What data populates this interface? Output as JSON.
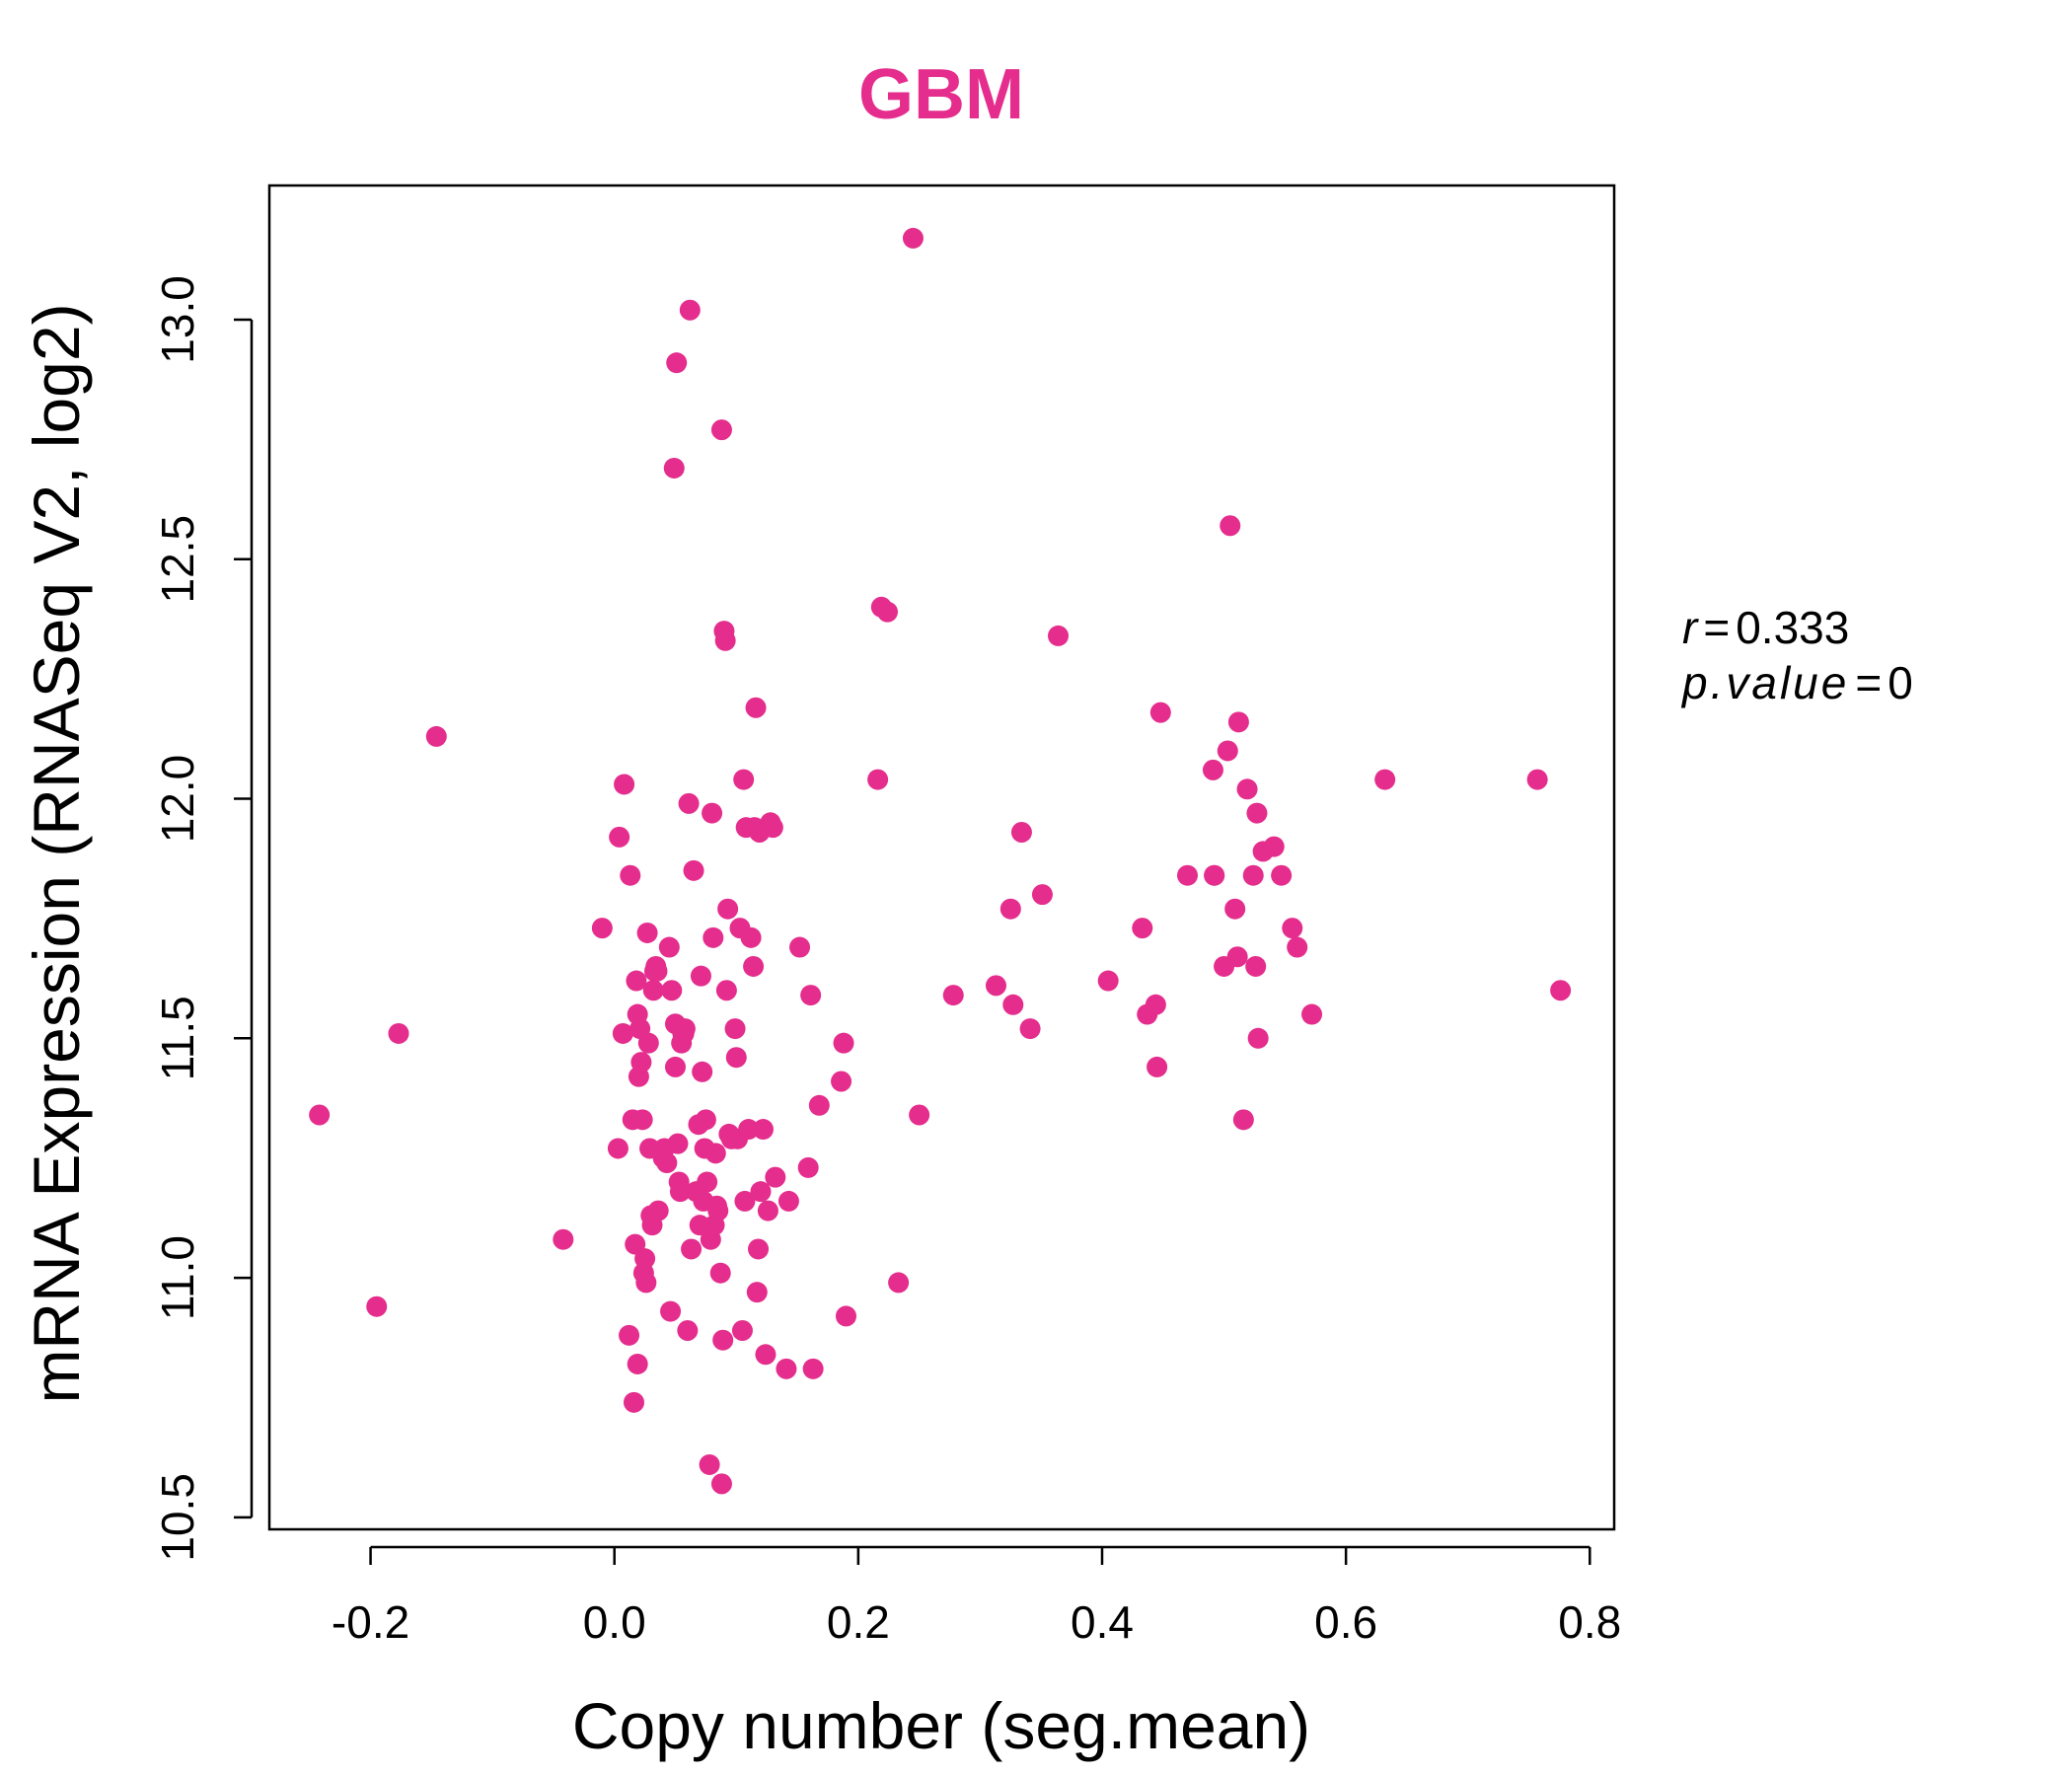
{
  "chart_data": {
    "type": "scatter",
    "title": "GBM",
    "xlabel": "Copy number (seg.mean)",
    "ylabel": "mRNA Expression (RNASeq V2, log2)",
    "xlim": [
      -0.283,
      0.82
    ],
    "ylim": [
      10.475,
      13.28
    ],
    "x_ticks": [
      -0.2,
      0.0,
      0.2,
      0.4,
      0.6,
      0.8
    ],
    "x_tick_labels": [
      "-0.2",
      "0.0",
      "0.2",
      "0.4",
      "0.6",
      "0.8"
    ],
    "y_ticks": [
      10.5,
      11.0,
      11.5,
      12.0,
      12.5,
      13.0
    ],
    "y_tick_labels": [
      "10.5",
      "11.0",
      "11.5",
      "12.0",
      "12.5",
      "13.0"
    ],
    "grid": false,
    "legend": "none",
    "point_color": "#E42D8C",
    "annotations": [
      {
        "symbol": "r",
        "eq": "=",
        "value": "0.333"
      },
      {
        "symbol": "p.value",
        "eq": "=",
        "value": "0"
      }
    ],
    "x": [
      -0.242,
      -0.195,
      -0.177,
      -0.146,
      -0.042,
      -0.01,
      0.003,
      0.004,
      0.007,
      0.008,
      0.012,
      0.013,
      0.015,
      0.016,
      0.017,
      0.018,
      0.019,
      0.019,
      0.02,
      0.021,
      0.022,
      0.023,
      0.024,
      0.025,
      0.026,
      0.027,
      0.028,
      0.029,
      0.03,
      0.031,
      0.032,
      0.033,
      0.034,
      0.035,
      0.036,
      0.04,
      0.041,
      0.043,
      0.045,
      0.046,
      0.047,
      0.049,
      0.05,
      0.05,
      0.051,
      0.052,
      0.053,
      0.054,
      0.055,
      0.056,
      0.057,
      0.058,
      0.06,
      0.061,
      0.062,
      0.063,
      0.065,
      0.067,
      0.069,
      0.07,
      0.071,
      0.072,
      0.073,
      0.074,
      0.075,
      0.076,
      0.078,
      0.079,
      0.08,
      0.081,
      0.082,
      0.083,
      0.084,
      0.085,
      0.087,
      0.088,
      0.088,
      0.089,
      0.09,
      0.091,
      0.092,
      0.093,
      0.094,
      0.096,
      0.099,
      0.1,
      0.101,
      0.103,
      0.105,
      0.106,
      0.107,
      0.108,
      0.11,
      0.112,
      0.114,
      0.115,
      0.116,
      0.117,
      0.118,
      0.119,
      0.12,
      0.122,
      0.124,
      0.126,
      0.128,
      0.13,
      0.132,
      0.141,
      0.143,
      0.152,
      0.159,
      0.161,
      0.163,
      0.168,
      0.186,
      0.188,
      0.19,
      0.216,
      0.219,
      0.224,
      0.233,
      0.245,
      0.25,
      0.278,
      0.313,
      0.325,
      0.327,
      0.334,
      0.341,
      0.351,
      0.364,
      0.405,
      0.433,
      0.437,
      0.444,
      0.445,
      0.448,
      0.47,
      0.491,
      0.492,
      0.492,
      0.5,
      0.503,
      0.505,
      0.509,
      0.511,
      0.512,
      0.516,
      0.519,
      0.524,
      0.526,
      0.527,
      0.528,
      0.532,
      0.541,
      0.547,
      0.556,
      0.56,
      0.572,
      0.632,
      0.757,
      0.776
    ],
    "y": [
      11.34,
      10.94,
      11.51,
      12.13,
      11.08,
      11.73,
      11.27,
      11.92,
      11.51,
      12.03,
      10.88,
      11.84,
      11.33,
      10.74,
      11.07,
      11.62,
      11.55,
      10.82,
      11.42,
      11.52,
      11.45,
      11.33,
      11.01,
      11.04,
      10.99,
      11.72,
      11.49,
      11.27,
      11.13,
      11.11,
      11.6,
      11.64,
      11.65,
      11.64,
      11.14,
      11.25,
      11.27,
      11.24,
      11.69,
      10.93,
      11.6,
      12.69,
      11.44,
      11.53,
      12.91,
      11.28,
      11.2,
      11.18,
      11.49,
      11.51,
      11.51,
      11.52,
      10.89,
      11.99,
      13.02,
      11.06,
      11.85,
      11.18,
      11.32,
      11.11,
      11.63,
      11.43,
      11.16,
      11.27,
      11.33,
      11.2,
      10.61,
      11.08,
      11.97,
      11.71,
      11.11,
      11.26,
      11.15,
      11.14,
      11.01,
      12.77,
      10.57,
      10.87,
      12.35,
      12.33,
      11.6,
      11.77,
      11.3,
      11.29,
      11.52,
      11.46,
      11.29,
      11.73,
      10.89,
      12.04,
      11.16,
      11.94,
      11.31,
      11.71,
      11.65,
      11.94,
      12.19,
      10.97,
      11.06,
      11.93,
      11.18,
      11.31,
      10.84,
      11.14,
      11.95,
      11.94,
      11.21,
      10.81,
      11.16,
      11.69,
      11.23,
      11.59,
      10.81,
      11.36,
      11.41,
      11.49,
      10.92,
      12.04,
      12.4,
      12.39,
      10.99,
      13.17,
      11.34,
      11.59,
      11.61,
      11.77,
      11.57,
      11.93,
      11.52,
      11.8,
      12.34,
      11.62,
      11.73,
      11.55,
      11.57,
      11.44,
      12.18,
      11.84,
      12.06,
      11.84,
      11.84,
      11.65,
      12.1,
      12.57,
      11.77,
      11.67,
      12.16,
      11.33,
      12.02,
      11.84,
      11.65,
      11.97,
      11.5,
      11.89,
      11.9,
      11.84,
      11.73,
      11.69,
      11.55,
      12.04,
      12.04,
      11.6
    ]
  }
}
